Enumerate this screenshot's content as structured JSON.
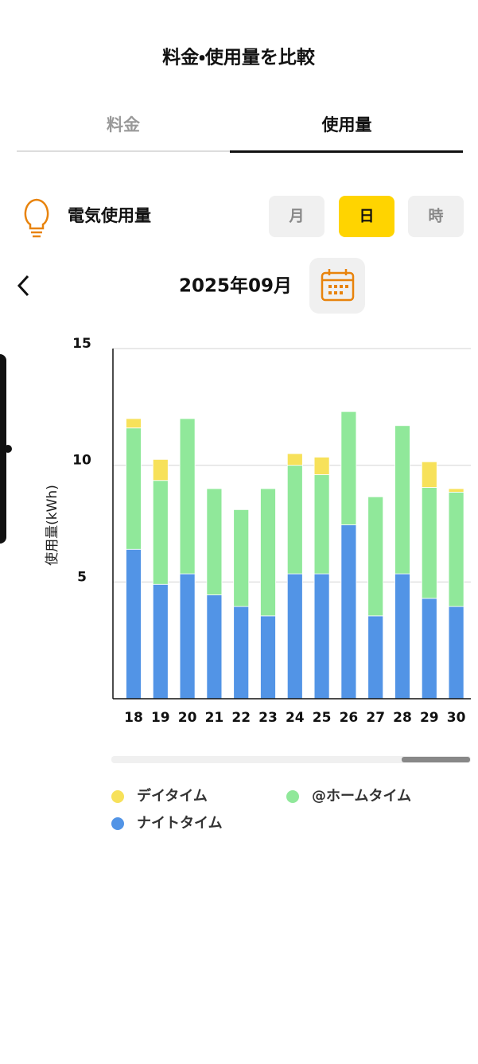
{
  "ui": {
    "title": "料金・使用量を比較",
    "tabs": [
      "料金",
      "使用量"
    ],
    "section": "電気使用量",
    "periods": [
      "月",
      "日",
      "時"
    ],
    "month": "2025年09月"
  },
  "chart_data": {
    "type": "stacked_bar",
    "y_label": "使用量(kWh)",
    "categories": [
      "18",
      "19",
      "20",
      "21",
      "22",
      "23",
      "24",
      "25",
      "26",
      "27",
      "28",
      "29",
      "30"
    ],
    "series": [
      {
        "name": "デイタイム",
        "color": "#f7e15a",
        "values": [
          0.4,
          0.9,
          0,
          0,
          0,
          0,
          0.5,
          0.75,
          0,
          0,
          0,
          1.1,
          0.15
        ]
      },
      {
        "name": "@ホームタイム",
        "color": "#90e89a",
        "values": [
          5.2,
          4.45,
          6.65,
          4.55,
          4.15,
          5.45,
          4.65,
          4.25,
          4.85,
          5.1,
          6.35,
          4.75,
          4.9
        ]
      },
      {
        "name": "ナイトタイム",
        "color": "#5294e6",
        "values": [
          6.4,
          4.9,
          5.35,
          4.45,
          3.95,
          3.55,
          5.35,
          5.35,
          7.45,
          3.55,
          5.35,
          4.3,
          3.95
        ]
      }
    ],
    "ylim": [
      0,
      15
    ],
    "yticks": [
      5,
      10,
      15
    ],
    "grid": true
  }
}
